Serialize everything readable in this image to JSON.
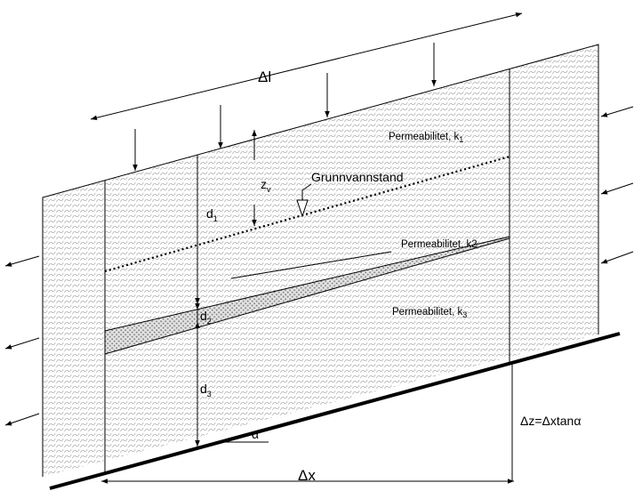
{
  "diagram": {
    "delta_l": "Δl",
    "delta_x": "Δx",
    "delta_z": "Δz=Δxtanα",
    "alpha": "α",
    "z_v": {
      "main": "z",
      "sub": "v"
    },
    "d1": {
      "main": "d",
      "sub": "1"
    },
    "d2": {
      "main": "d",
      "sub": "2"
    },
    "d3": {
      "main": "d",
      "sub": "3"
    },
    "groundwater": "Grunnvannstand",
    "perm_k1": {
      "main": "Permeabilitet, k",
      "sub": "1"
    },
    "perm_k2": "Permeabilitet, k2",
    "perm_k3": {
      "main": "Permeabilitet, k",
      "sub": "3"
    }
  }
}
